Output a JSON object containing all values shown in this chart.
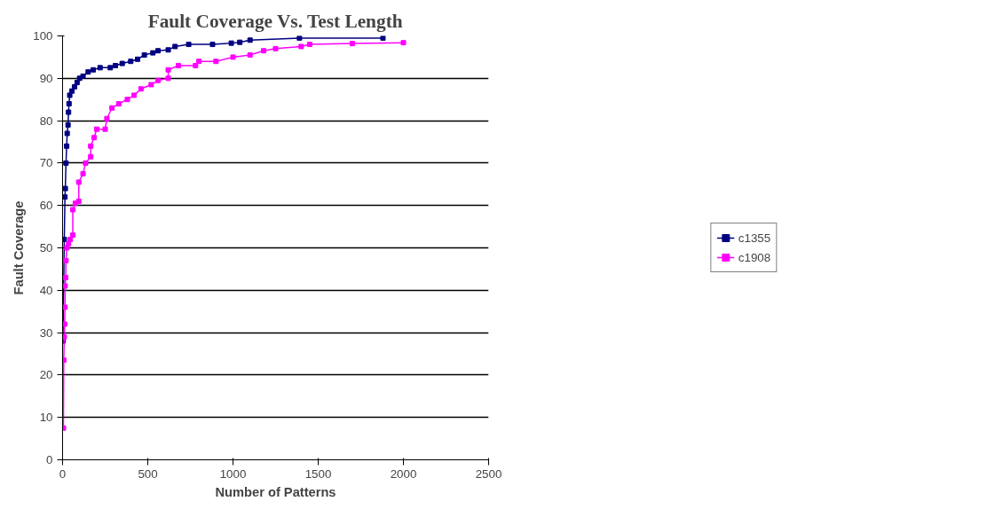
{
  "chart_data": {
    "type": "line",
    "title": "Fault Coverage Vs. Test Length",
    "xlabel": "Number of Patterns",
    "ylabel": "Fault Coverage",
    "xlim": [
      0,
      2500
    ],
    "xticks": [
      0,
      500,
      1000,
      1500,
      2000,
      2500
    ],
    "ylim": [
      0,
      100
    ],
    "yticks": [
      0,
      10,
      20,
      30,
      40,
      50,
      60,
      70,
      80,
      90,
      100
    ],
    "grid": "y",
    "legend": "right",
    "marker": "square",
    "line_style": "solid",
    "series": [
      {
        "name": "c1355",
        "color": "#000080",
        "x": [
          2,
          10,
          14,
          16,
          20,
          24,
          27,
          32,
          35,
          38,
          42,
          55,
          70,
          85,
          100,
          120,
          150,
          180,
          220,
          280,
          310,
          350,
          400,
          440,
          480,
          530,
          560,
          620,
          660,
          740,
          880,
          990,
          1040,
          1100,
          1390,
          1880
        ],
        "values": [
          28,
          52,
          62,
          64,
          70,
          74,
          77,
          79,
          82,
          84,
          86,
          87,
          88,
          89,
          90,
          90.5,
          91.5,
          92,
          92.5,
          92.5,
          93,
          93.5,
          94,
          94.5,
          95.5,
          96,
          96.5,
          96.7,
          97.5,
          98,
          98,
          98.3,
          98.5,
          99,
          99.5,
          99.5
        ]
      },
      {
        "name": "c1908",
        "color": "#ff00ff",
        "x": [
          5,
          7,
          10,
          12,
          14,
          15,
          18,
          20,
          25,
          35,
          45,
          60,
          60,
          75,
          95,
          95,
          120,
          135,
          165,
          165,
          185,
          200,
          250,
          260,
          290,
          330,
          380,
          420,
          460,
          520,
          560,
          620,
          620,
          680,
          780,
          800,
          900,
          1000,
          1100,
          1180,
          1250,
          1400,
          1450,
          1700,
          2000
        ],
        "values": [
          7.5,
          23.5,
          29,
          32,
          36,
          41,
          43,
          47,
          50,
          51,
          52,
          53,
          59,
          60.5,
          61,
          65.5,
          67.5,
          70,
          71.5,
          74,
          76,
          78,
          78,
          80.5,
          83,
          84,
          85,
          86,
          87.5,
          88.5,
          89.5,
          90,
          92,
          93,
          93,
          94,
          94,
          95,
          95.5,
          96.5,
          97,
          97.5,
          98,
          98.2,
          98.4
        ]
      }
    ]
  }
}
